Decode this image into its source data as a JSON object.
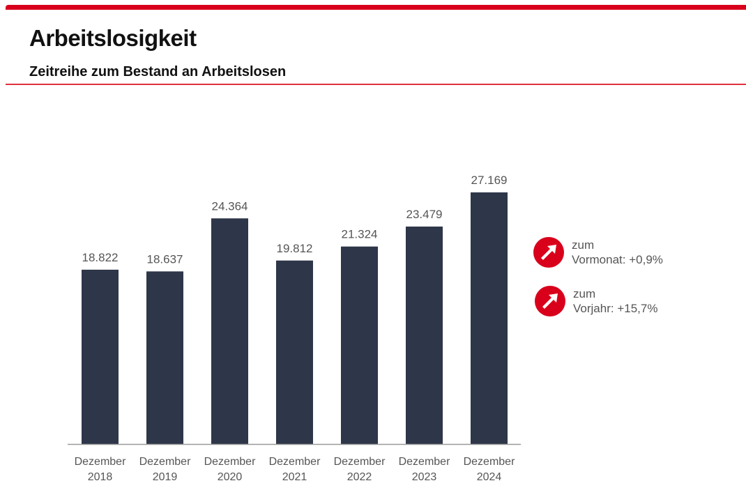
{
  "header": {
    "title": "Arbeitslosigkeit",
    "subtitle": "Zeitreihe zum Bestand an Arbeitslosen"
  },
  "colors": {
    "accent": "#d9001b",
    "bar": "#2e3649"
  },
  "chart_data": {
    "type": "bar",
    "categories": [
      [
        "Dezember",
        "2018"
      ],
      [
        "Dezember",
        "2019"
      ],
      [
        "Dezember",
        "2020"
      ],
      [
        "Dezember",
        "2021"
      ],
      [
        "Dezember",
        "2022"
      ],
      [
        "Dezember",
        "2023"
      ],
      [
        "Dezember",
        "2024"
      ]
    ],
    "values": [
      18822,
      18637,
      24364,
      19812,
      21324,
      23479,
      27169
    ],
    "labels": [
      "18.822",
      "18.637",
      "24.364",
      "19.812",
      "21.324",
      "23.479",
      "27.169"
    ],
    "ylim": [
      0,
      27169
    ],
    "grid": false,
    "title": "",
    "xlabel": "",
    "ylabel": ""
  },
  "kpis": [
    {
      "icon": "arrow-up-right-icon",
      "line1": "zum",
      "line2": "Vormonat:",
      "value": "+0,9%"
    },
    {
      "icon": "arrow-up-right-icon",
      "line1": "zum",
      "line2": "Vorjahr:",
      "value": "+15,7%"
    }
  ]
}
